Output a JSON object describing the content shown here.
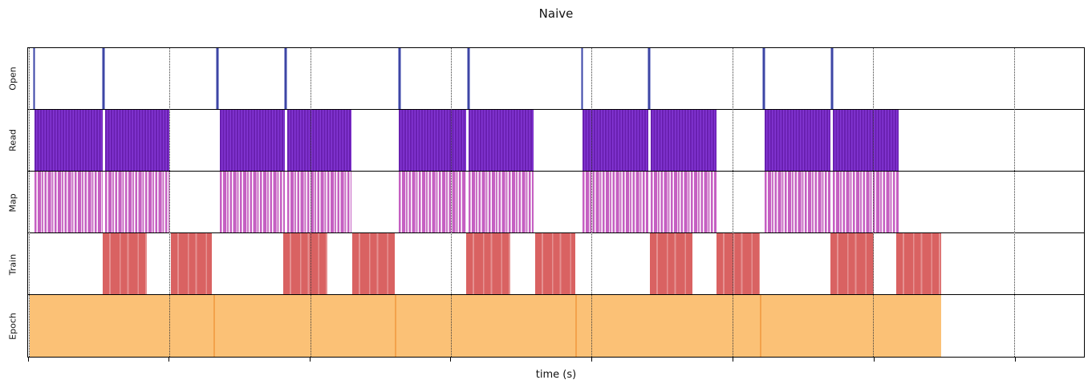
{
  "chart_data": {
    "type": "timeline",
    "subtype": "broken horizontal bars / event plot (gantt-style data-loading trace)",
    "title": "Naive",
    "xlabel": "time (s)",
    "x_axis": {
      "numeric_tick_labels_visible": false,
      "gridlines": "vertical dotted lines drawn over bars",
      "gridlines_pct": [
        0.08,
        13.39,
        26.71,
        40.02,
        53.34,
        66.69,
        80.05,
        93.4
      ],
      "units_note": "all positions given as percent of x-axis width (no numeric labels shown in original)"
    },
    "legend": "none",
    "rows": [
      {
        "label": "Open",
        "style": "tick",
        "color": "#3e46a4",
        "tick_width_pct": 0.3,
        "events_pct": [
          0.57,
          7.17,
          17.94,
          24.39,
          35.16,
          41.69,
          52.47,
          58.84,
          69.69,
          76.14
        ]
      },
      {
        "label": "Read",
        "style": "read",
        "color": "#7b2bc6",
        "intervals_pct": [
          [
            0.61,
            7.06
          ],
          [
            7.28,
            13.35
          ],
          [
            18.13,
            24.28
          ],
          [
            24.51,
            30.65
          ],
          [
            35.13,
            41.5
          ],
          [
            41.73,
            47.88
          ],
          [
            52.5,
            58.73
          ],
          [
            58.95,
            65.17
          ],
          [
            69.73,
            76.02
          ],
          [
            76.25,
            82.47
          ]
        ]
      },
      {
        "label": "Map",
        "style": "map",
        "color": "#c55fc2",
        "intervals_pct": [
          [
            0.61,
            7.06
          ],
          [
            7.28,
            13.35
          ],
          [
            18.13,
            24.28
          ],
          [
            24.51,
            30.65
          ],
          [
            35.13,
            41.5
          ],
          [
            41.73,
            47.88
          ],
          [
            52.5,
            58.73
          ],
          [
            58.95,
            65.17
          ],
          [
            69.73,
            76.02
          ],
          [
            76.25,
            82.47
          ]
        ]
      },
      {
        "label": "Train",
        "style": "train",
        "color": "#d96262",
        "intervals_pct": [
          [
            7.06,
            11.23
          ],
          [
            13.51,
            17.37
          ],
          [
            24.13,
            28.38
          ],
          [
            30.73,
            34.75
          ],
          [
            41.5,
            45.68
          ],
          [
            48.03,
            51.82
          ],
          [
            58.88,
            62.9
          ],
          [
            65.17,
            69.27
          ],
          [
            76.02,
            80.12
          ],
          [
            82.25,
            86.49
          ]
        ]
      },
      {
        "label": "Epoch",
        "style": "epoch",
        "color": "#fbc176",
        "intervals_pct": [
          [
            0.15,
            17.53
          ],
          [
            17.53,
            34.75
          ],
          [
            34.75,
            51.82
          ],
          [
            51.82,
            69.27
          ],
          [
            69.27,
            86.49
          ]
        ]
      }
    ]
  }
}
